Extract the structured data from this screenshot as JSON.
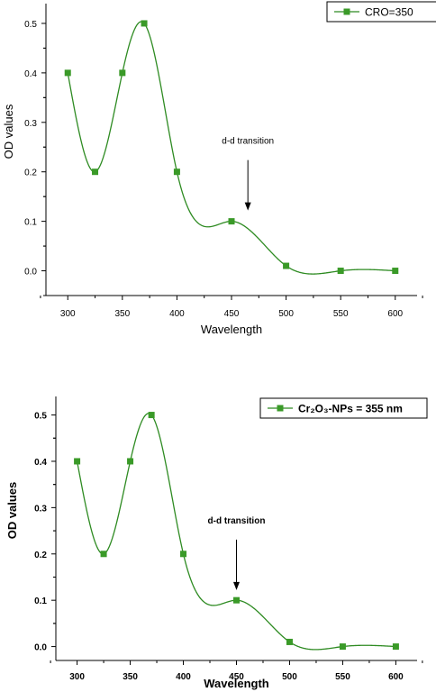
{
  "colors": {
    "series": "#2e8b22",
    "marker": "#3a9a28",
    "axis": "#000000"
  },
  "chart_data": [
    {
      "type": "line",
      "title": "",
      "xlabel": "Wavelength",
      "ylabel": "OD values",
      "xlim": [
        280,
        620
      ],
      "ylim": [
        -0.05,
        0.54
      ],
      "xticks": [
        300,
        350,
        400,
        450,
        500,
        550,
        600
      ],
      "yticks": [
        "0.0",
        "0.1",
        "0.2",
        "0.3",
        "0.4",
        "0.5"
      ],
      "legend": {
        "label": "CRO=350",
        "position": "top-right"
      },
      "annotation": {
        "text": "d-d transition",
        "x": 465,
        "y": 0.12
      },
      "series": [
        {
          "name": "CRO=350",
          "x": [
            300,
            325,
            350,
            370,
            400,
            450,
            500,
            550,
            600
          ],
          "y": [
            0.4,
            0.2,
            0.4,
            0.5,
            0.2,
            0.1,
            0.01,
            0.0,
            0.0
          ]
        }
      ]
    },
    {
      "type": "line",
      "title": "",
      "xlabel": "Wavelength",
      "ylabel": "OD values",
      "xlim": [
        280,
        620
      ],
      "ylim": [
        -0.03,
        0.54
      ],
      "xticks": [
        300,
        350,
        400,
        450,
        500,
        550,
        600
      ],
      "yticks": [
        "0.0",
        "0.1",
        "0.2",
        "0.3",
        "0.4",
        "0.5"
      ],
      "legend": {
        "label": "Cr₂O₃-NPs = 355 nm",
        "position": "top-right"
      },
      "annotation": {
        "text": "d-d transition",
        "x": 450,
        "y": 0.12
      },
      "series": [
        {
          "name": "Cr₂O₃-NPs = 355 nm",
          "x": [
            300,
            325,
            350,
            370,
            400,
            450,
            500,
            550,
            600
          ],
          "y": [
            0.4,
            0.2,
            0.4,
            0.5,
            0.2,
            0.1,
            0.01,
            0.0,
            0.0
          ]
        }
      ]
    }
  ]
}
